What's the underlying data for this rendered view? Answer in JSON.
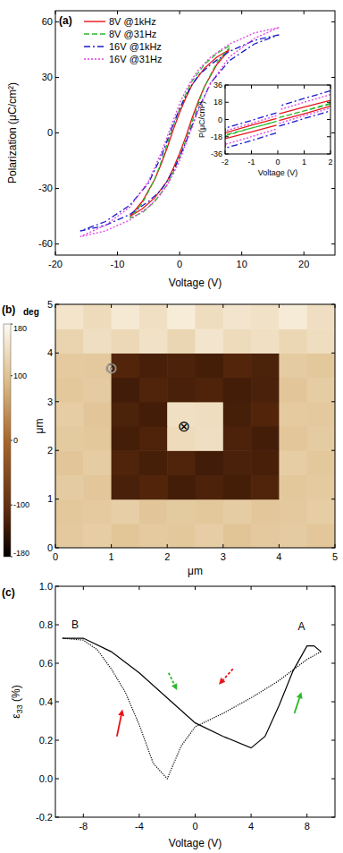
{
  "chart_data": [
    {
      "type": "line",
      "title": "(a)",
      "x_label": "Voltage (V)",
      "y_label": "Polarization (μC/cm²)",
      "xlim": [
        -20,
        25
      ],
      "xticks": [
        -20,
        -10,
        0,
        10,
        20
      ],
      "ylim": [
        -66,
        66
      ],
      "yticks": [
        -60,
        -30,
        0,
        30,
        60
      ],
      "legend": "upper left",
      "series": [
        {
          "name": "8V @1kHz",
          "color": "#e8141a",
          "line_style": "solid",
          "x": [
            8,
            6,
            4,
            2,
            1,
            0,
            -1,
            -2,
            -3,
            -4,
            -6,
            -8,
            -6,
            -4,
            -2,
            -1,
            0,
            1,
            2,
            3,
            4,
            6,
            8
          ],
          "values": [
            45,
            41,
            35,
            26,
            19,
            11,
            2,
            -8,
            -17,
            -25,
            -37,
            -45,
            -41,
            -35,
            -26,
            -19,
            -11,
            -2,
            8,
            17,
            25,
            37,
            45
          ]
        },
        {
          "name": "8V @31Hz",
          "color": "#2db82d",
          "line_style": "dashed",
          "x": [
            8,
            6,
            4,
            2,
            1,
            0,
            -1,
            -2,
            -3,
            -4,
            -6,
            -8,
            -6,
            -4,
            -2,
            -1,
            0,
            1,
            2,
            3,
            4,
            6,
            8
          ],
          "values": [
            47,
            43,
            37,
            28,
            21,
            13,
            4,
            -6,
            -16,
            -25,
            -38,
            -46,
            -43,
            -37,
            -28,
            -21,
            -13,
            -4,
            6,
            16,
            25,
            38,
            46
          ]
        },
        {
          "name": "16V @1kHz",
          "color": "#1a1acc",
          "line_style": "dashdot",
          "x": [
            16,
            12,
            8,
            5,
            3,
            2,
            1,
            0,
            -1,
            -2,
            -3,
            -5,
            -8,
            -12,
            -16,
            -12,
            -8,
            -5,
            -3,
            -2,
            -1,
            0,
            1,
            2,
            3,
            5,
            8,
            12,
            16
          ],
          "values": [
            53,
            50,
            44,
            37,
            31,
            26,
            20,
            13,
            5,
            -4,
            -13,
            -27,
            -39,
            -48,
            -53,
            -50,
            -44,
            -37,
            -31,
            -26,
            -20,
            -13,
            -5,
            4,
            13,
            27,
            39,
            48,
            53
          ]
        },
        {
          "name": "16V @31Hz",
          "color": "#e040e0",
          "line_style": "dotted",
          "x": [
            16,
            12,
            8,
            5,
            3,
            2,
            1,
            0,
            -1,
            -2,
            -3,
            -5,
            -8,
            -12,
            -16,
            -12,
            -8,
            -5,
            -3,
            -2,
            -1,
            0,
            1,
            2,
            3,
            5,
            8,
            12,
            16
          ],
          "values": [
            57,
            54,
            48,
            41,
            34,
            29,
            23,
            16,
            7,
            -2,
            -11,
            -26,
            -40,
            -50,
            -56,
            -53,
            -47,
            -40,
            -33,
            -28,
            -22,
            -15,
            -6,
            3,
            12,
            27,
            41,
            51,
            57
          ]
        }
      ]
    },
    {
      "type": "line",
      "x_label": "Voltage (V)",
      "y_label": "P(μC/cm²)",
      "xlim": [
        -2,
        2
      ],
      "xticks": [
        -2,
        -1,
        0,
        1,
        2
      ],
      "ylim": [
        -36,
        36
      ],
      "yticks": [
        -36,
        -18,
        0,
        18,
        36
      ],
      "series": [
        {
          "color": "#e8141a",
          "line_style": "solid",
          "x": [
            2,
            1,
            0.05,
            0,
            -0.05,
            -1,
            -2,
            -2,
            -1,
            -0.05,
            0,
            0.05,
            1,
            2
          ],
          "values": [
            20,
            13,
            6,
            null,
            1,
            -6,
            -14,
            -20,
            -13,
            -6,
            null,
            -1,
            6,
            14
          ]
        },
        {
          "color": "#2db82d",
          "line_style": "dashed",
          "x": [
            2,
            1,
            0.05,
            0,
            -0.05,
            -1,
            -2,
            -2,
            -1,
            -0.05,
            0,
            0.05,
            1,
            2
          ],
          "values": [
            16,
            9,
            2,
            null,
            -2,
            -9,
            -17,
            -16,
            -9,
            -2,
            null,
            2,
            9,
            17
          ]
        },
        {
          "color": "#1a1acc",
          "line_style": "dashdot",
          "x": [
            2,
            1,
            0.05,
            0,
            -0.05,
            -1,
            -2,
            -2,
            -1,
            -0.05,
            0,
            0.05,
            1,
            2
          ],
          "values": [
            30,
            22,
            14,
            null,
            7,
            -1,
            -9,
            -30,
            -22,
            -14,
            null,
            -7,
            1,
            9
          ]
        },
        {
          "color": "#e040e0",
          "line_style": "dotted",
          "x": [
            2,
            1,
            0.05,
            0,
            -0.05,
            -1,
            -2,
            -2,
            -1,
            -0.05,
            0,
            0.05,
            1,
            2
          ],
          "values": [
            26,
            18,
            10,
            null,
            4,
            -4,
            -12,
            -26,
            -18,
            -10,
            null,
            -4,
            4,
            12
          ]
        }
      ]
    },
    {
      "type": "heatmap",
      "title": "(b)",
      "x_label": "μm",
      "y_label": "μm",
      "xlim": [
        0,
        5
      ],
      "xticks": [
        0,
        1,
        2,
        3,
        4,
        5
      ],
      "ylim": [
        0,
        5
      ],
      "yticks": [
        0,
        1,
        2,
        3,
        4,
        5
      ],
      "x": [
        0.25,
        0.75,
        1.25,
        1.75,
        2.25,
        2.75,
        3.25,
        3.75,
        4.25,
        4.75
      ],
      "y": [
        0.25,
        0.75,
        1.25,
        1.75,
        2.25,
        2.75,
        3.25,
        3.75,
        4.25,
        4.75
      ],
      "z": [
        [
          110,
          115,
          105,
          112,
          108,
          116,
          104,
          110,
          113,
          107
        ],
        [
          108,
          112,
          117,
          106,
          111,
          109,
          114,
          107,
          110,
          115
        ],
        [
          113,
          107,
          -125,
          -118,
          -130,
          -122,
          -128,
          -120,
          109,
          112
        ],
        [
          106,
          114,
          -120,
          -127,
          -119,
          -131,
          -124,
          -126,
          115,
          108
        ],
        [
          111,
          109,
          -128,
          -121,
          135,
          140,
          -122,
          -129,
          107,
          113
        ],
        [
          115,
          106,
          -123,
          -130,
          142,
          138,
          -127,
          -118,
          112,
          110
        ],
        [
          108,
          113,
          -131,
          -119,
          -125,
          -121,
          -130,
          -124,
          106,
          114
        ],
        [
          112,
          110,
          -118,
          -126,
          -122,
          -128,
          -117,
          -123,
          113,
          109
        ],
        [
          125,
          140,
          132,
          145,
          128,
          150,
          136,
          142,
          130,
          138
        ],
        [
          148,
          135,
          155,
          142,
          160,
          138,
          150,
          145,
          158,
          140
        ]
      ],
      "colorbar_label": "deg",
      "colorbar_range": [
        -180,
        180
      ],
      "colorbar_ticks": [
        -180,
        -100,
        0,
        100,
        180
      ],
      "annotations": [
        {
          "text": "⊙",
          "x": 1.0,
          "y": 3.7
        },
        {
          "text": "⊗",
          "x": 2.3,
          "y": 2.5
        }
      ]
    },
    {
      "type": "line",
      "title": "(c)",
      "x_label": "Voltage (V)",
      "y_label": "ε33 (%)",
      "xlim": [
        -10,
        10
      ],
      "xticks": [
        -8,
        -4,
        0,
        4,
        8
      ],
      "ylim": [
        -0.2,
        1.0
      ],
      "yticks": [
        -0.2,
        {
          "value": 0,
          "label": "0.0"
        },
        0.2,
        0.4,
        0.6,
        0.8,
        {
          "value": 1,
          "label": "1.0"
        }
      ],
      "series": [
        {
          "color": "#000000",
          "line_style": "solid",
          "x": [
            -9.5,
            -8,
            -6,
            -4,
            -2,
            0,
            2,
            4,
            5,
            6,
            7,
            8,
            8.5,
            9
          ],
          "values": [
            0.73,
            0.73,
            0.66,
            0.55,
            0.42,
            0.29,
            0.22,
            0.16,
            0.22,
            0.38,
            0.56,
            0.69,
            0.69,
            0.66
          ]
        },
        {
          "color": "#000000",
          "line_style": "dotted",
          "x": [
            9,
            8,
            6,
            4,
            2,
            0,
            -1,
            -2,
            -3,
            -4,
            -5,
            -6,
            -7,
            -8,
            -9.5
          ],
          "values": [
            0.66,
            0.62,
            0.51,
            0.42,
            0.34,
            0.27,
            0.17,
            0.0,
            0.08,
            0.28,
            0.45,
            0.57,
            0.67,
            0.72,
            0.73
          ]
        }
      ],
      "annotations": [
        {
          "text": "A",
          "x": 7.6,
          "y": 0.77
        },
        {
          "text": "B",
          "x": -8.6,
          "y": 0.78
        }
      ]
    }
  ]
}
